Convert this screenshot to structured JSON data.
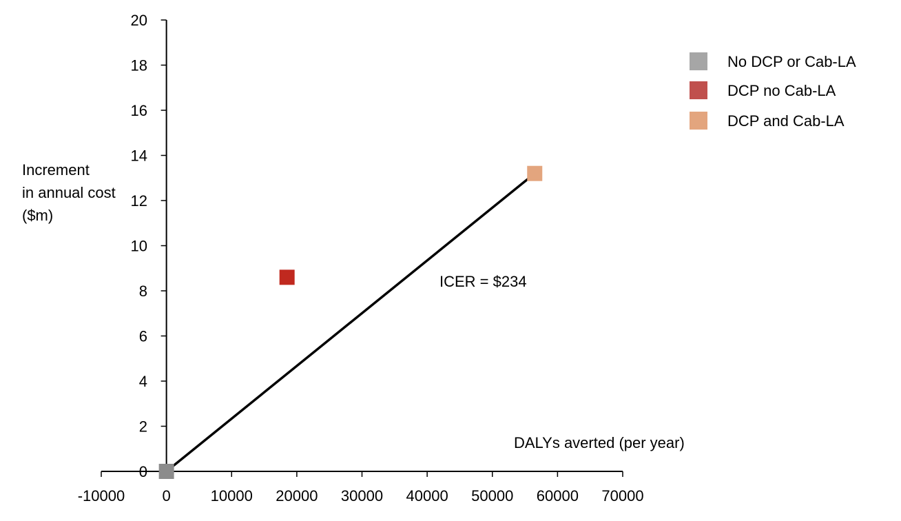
{
  "chart_data": {
    "type": "scatter",
    "xlabel": "DALYs averted (per year)",
    "ylabel_lines": [
      "Increment",
      "in annual cost",
      "($m)"
    ],
    "xlim": [
      -10000,
      70000
    ],
    "ylim": [
      0,
      20
    ],
    "x_ticks": [
      -10000,
      0,
      10000,
      20000,
      30000,
      40000,
      50000,
      60000,
      70000
    ],
    "y_ticks": [
      0,
      2,
      4,
      6,
      8,
      10,
      12,
      14,
      16,
      18,
      20
    ],
    "grid": false,
    "legend_position": "top-right",
    "series": [
      {
        "name": "No DCP or Cab-LA",
        "legend_color": "#a6a6a6",
        "color": "#8c8c8c",
        "points": [
          {
            "x": 0,
            "y": 0
          }
        ]
      },
      {
        "name": "DCP no Cab-LA",
        "legend_color": "#c0504d",
        "color": "#c0291f",
        "points": [
          {
            "x": 18500,
            "y": 8.6
          }
        ]
      },
      {
        "name": "DCP and Cab-LA",
        "legend_color": "#e3a57e",
        "color": "#e3a57e",
        "points": [
          {
            "x": 56500,
            "y": 13.2
          }
        ]
      }
    ],
    "frontier_line": {
      "from": {
        "x": 0,
        "y": 0
      },
      "to": {
        "x": 56500,
        "y": 13.2
      },
      "color": "#000000"
    },
    "annotations": [
      {
        "text": "ICER = $234"
      }
    ]
  }
}
